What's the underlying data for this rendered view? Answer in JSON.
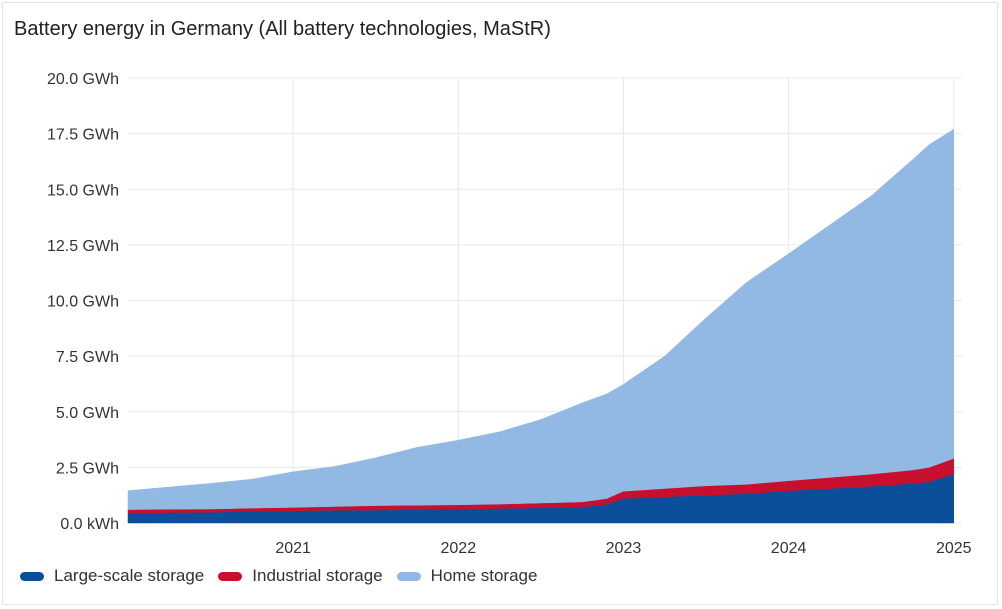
{
  "chart_data": {
    "type": "area",
    "stacked": true,
    "title": "Battery energy in Germany (All battery technologies, MaStR)",
    "xlabel": "",
    "ylabel": "",
    "xlim": [
      2020.0,
      2025.05
    ],
    "ylim": [
      0,
      20
    ],
    "x_ticks": [
      2021,
      2022,
      2023,
      2024,
      2025
    ],
    "x_tick_labels": [
      "2021",
      "2022",
      "2023",
      "2024",
      "2025"
    ],
    "y_ticks": [
      0,
      2.5,
      5,
      7.5,
      10,
      12.5,
      15,
      17.5,
      20
    ],
    "y_tick_labels": [
      "0.0 kWh",
      "2.5 GWh",
      "5.0 GWh",
      "7.5 GWh",
      "10.0 GWh",
      "12.5 GWh",
      "15.0 GWh",
      "17.5 GWh",
      "20.0 GWh"
    ],
    "y_unit": "GWh",
    "grid": true,
    "legend_position": "bottom-left",
    "x": [
      2020.0,
      2020.25,
      2020.5,
      2020.75,
      2021.0,
      2021.25,
      2021.5,
      2021.75,
      2022.0,
      2022.25,
      2022.5,
      2022.75,
      2022.9,
      2023.0,
      2023.25,
      2023.5,
      2023.75,
      2024.0,
      2024.25,
      2024.5,
      2024.75,
      2024.85,
      2025.0
    ],
    "series": [
      {
        "name": "Large-scale storage",
        "color": "#0b4f9a",
        "values": [
          0.45,
          0.47,
          0.48,
          0.52,
          0.55,
          0.57,
          0.58,
          0.6,
          0.62,
          0.65,
          0.68,
          0.72,
          0.85,
          1.1,
          1.18,
          1.25,
          1.32,
          1.45,
          1.55,
          1.65,
          1.78,
          1.85,
          2.2
        ]
      },
      {
        "name": "Industrial storage",
        "color": "#c8102e",
        "values": [
          0.15,
          0.15,
          0.15,
          0.15,
          0.15,
          0.17,
          0.2,
          0.2,
          0.2,
          0.2,
          0.22,
          0.23,
          0.25,
          0.33,
          0.37,
          0.42,
          0.42,
          0.45,
          0.5,
          0.55,
          0.6,
          0.65,
          0.7
        ]
      },
      {
        "name": "Home storage",
        "color": "#92b9e3",
        "values": [
          0.85,
          1.0,
          1.15,
          1.3,
          1.6,
          1.8,
          2.15,
          2.6,
          2.9,
          3.25,
          3.75,
          4.45,
          4.7,
          4.8,
          5.95,
          7.55,
          9.1,
          10.2,
          11.35,
          12.5,
          13.95,
          14.5,
          14.8
        ]
      }
    ]
  }
}
